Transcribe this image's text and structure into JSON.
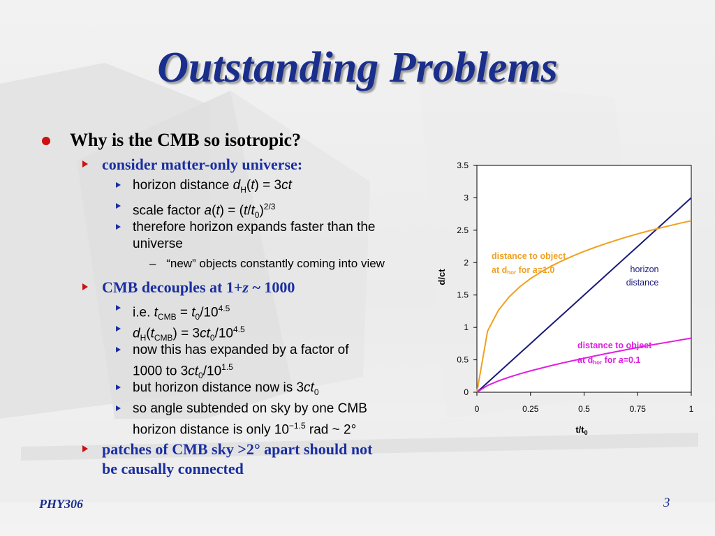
{
  "slide": {
    "title": "Outstanding Problems",
    "bullet1": "Why is the CMB so isotropic?",
    "sub1": "consider matter-only universe:",
    "sub1_items": {
      "horizon_a": "horizon distance ",
      "horizon_d": "d",
      "horizon_H": "H",
      "horizon_b": "(",
      "horizon_t": "t",
      "horizon_c": ") = 3",
      "horizon_ct": "ct",
      "scale_a": "scale factor ",
      "scale_a_it": "a",
      "scale_b": "(",
      "scale_t": "t",
      "scale_c": ") = (",
      "scale_t2": "t",
      "scale_slash": "/",
      "scale_t0": "t",
      "scale_0": "0",
      "scale_close": ")",
      "scale_exp": "2/3",
      "therefore_line1": "therefore horizon expands faster than the",
      "therefore_line2": "universe",
      "new_objects": "“new” objects constantly coming into view",
      "dash": "–"
    },
    "sub2_a": "CMB decouples at 1+",
    "sub2_z": "z",
    "sub2_b": " ~ 1000",
    "sub2_items": {
      "ie_a": "i.e. ",
      "ie_t": "t",
      "ie_cmb": "CMB",
      "ie_eq": " = ",
      "ie_t0": "t",
      "ie_0": "0",
      "ie_div": "/10",
      "ie_exp": "4.5",
      "dh_d": "d",
      "dh_H": "H",
      "dh_open": "(",
      "dh_t": "t",
      "dh_cmb": "CMB",
      "dh_mid": ") = 3",
      "dh_ct": "ct",
      "dh_0": "0",
      "dh_div": "/10",
      "dh_exp": "4.5",
      "expanded_line1": "now this has expanded by a factor of",
      "expanded_line2a": "1000 to 3",
      "expanded_ct": "ct",
      "expanded_0": "0",
      "expanded_div": "/10",
      "expanded_exp": "1.5",
      "horizon_now_a": "but horizon distance now is 3",
      "horizon_now_ct": "ct",
      "horizon_now_0": "0",
      "angle_line1": "so angle subtended on sky by one CMB",
      "angle_line2a": "horizon distance is only 10",
      "angle_exp": "−1.5",
      "angle_line2b": " rad ~ 2°"
    },
    "sub3_line1": "patches of CMB sky >2° apart should not",
    "sub3_line2": "be causally connected",
    "footer_left": "PHY306",
    "page_number": "3"
  },
  "chart_data": {
    "type": "line",
    "x": [
      0,
      0.05,
      0.1,
      0.15,
      0.2,
      0.25,
      0.3,
      0.35,
      0.4,
      0.45,
      0.5,
      0.55,
      0.6,
      0.65,
      0.7,
      0.75,
      0.8,
      0.85,
      0.9,
      0.95,
      1.0
    ],
    "series": [
      {
        "name": "horizon distance",
        "color": "#1a1a7a",
        "values": [
          0,
          0.15,
          0.3,
          0.45,
          0.6,
          0.75,
          0.9,
          1.05,
          1.2,
          1.35,
          1.5,
          1.65,
          1.8,
          1.95,
          2.1,
          2.25,
          2.4,
          2.55,
          2.7,
          2.85,
          3.0
        ]
      },
      {
        "name": "distance to object at dhor for a=1.0",
        "color": "#f0a020",
        "values": [
          0,
          0.945,
          1.262,
          1.47,
          1.627,
          1.753,
          1.858,
          1.951,
          2.032,
          2.106,
          2.173,
          2.235,
          2.292,
          2.346,
          2.396,
          2.444,
          2.488,
          2.531,
          2.571,
          2.609,
          2.646
        ]
      },
      {
        "name": "distance to object at dhor for a=0.1",
        "color": "#e020e0",
        "values": [
          0,
          0.105,
          0.175,
          0.232,
          0.283,
          0.329,
          0.372,
          0.413,
          0.452,
          0.489,
          0.525,
          0.56,
          0.593,
          0.626,
          0.658,
          0.689,
          0.719,
          0.749,
          0.778,
          0.807,
          0.835
        ]
      }
    ],
    "xlabel": "t/t",
    "xlabel_sub": "0",
    "ylabel": "d/ct",
    "xlim": [
      0,
      1
    ],
    "ylim": [
      0,
      3.5
    ],
    "xticks": [
      "0",
      "0.25",
      "0.5",
      "0.75",
      "1"
    ],
    "yticks": [
      "0",
      "0.5",
      "1",
      "1.5",
      "2",
      "2.5",
      "3",
      "3.5"
    ],
    "grid": false,
    "annotations": {
      "orange_line1": "distance to object",
      "orange_line2a": "at d",
      "orange_sub": "hor",
      "orange_line2b": " for ",
      "orange_a": "a",
      "orange_line2c": "=1.0",
      "blue_line1": "horizon",
      "blue_line2": "distance",
      "magenta_line1": "distance to object",
      "magenta_line2a": "at d",
      "magenta_sub": "hor",
      "magenta_line2b": " for ",
      "magenta_a": "a",
      "magenta_line2c": "=0.1",
      "orange_color": "#f0a020",
      "blue_color": "#1a1a7a",
      "magenta_color": "#e020e0"
    }
  },
  "colors": {
    "title": "#1a2e8c",
    "bullet": "#cc1111",
    "subheading": "#1a2ea0"
  }
}
